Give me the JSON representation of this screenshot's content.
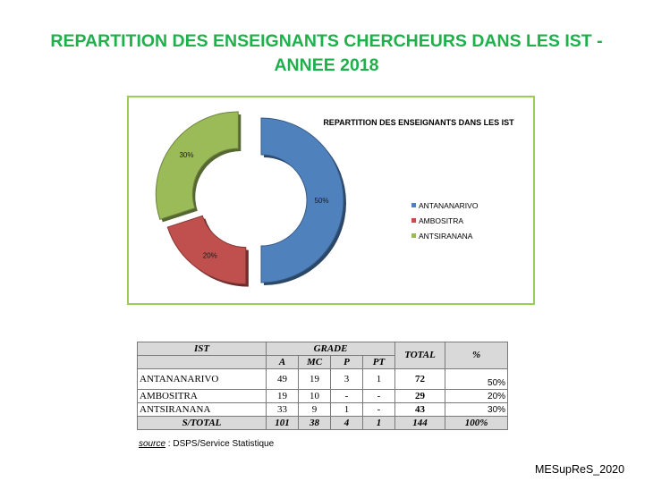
{
  "slide_title": "REPARTITION DES ENSEIGNANTS CHERCHEURS DANS LES IST - ANNEE 2018",
  "colors": {
    "title": "#1fb04b",
    "border": "#9acd56"
  },
  "chart_data": {
    "type": "pie",
    "title": "REPARTITION DES ENSEIGNANTS DANS LES IST",
    "categories": [
      "ANTANANARIVO",
      "AMBOSITRA",
      "ANTSIRANANA"
    ],
    "values": [
      50,
      20,
      30
    ],
    "labels": [
      "50%",
      "20%",
      "30%"
    ],
    "colors": [
      "#4f81bd",
      "#c0504d",
      "#9bbb59"
    ],
    "style": "exploded-doughnut",
    "legend_position": "right"
  },
  "table": {
    "header": {
      "ist": "IST",
      "grade": "GRADE",
      "total": "TOTAL",
      "pct": "%"
    },
    "grades": [
      "A",
      "MC",
      "P",
      "PT"
    ],
    "rows": [
      {
        "name": "ANTANANARIVO",
        "a": "49",
        "mc": "19",
        "p": "3",
        "pt": "1",
        "total": "72",
        "pct": "50%"
      },
      {
        "name": "AMBOSITRA",
        "a": "19",
        "mc": "10",
        "p": "-",
        "pt": "-",
        "total": "29",
        "pct": "20%"
      },
      {
        "name": "ANTSIRANANA",
        "a": "33",
        "mc": "9",
        "p": "1",
        "pt": "-",
        "total": "43",
        "pct": "30%"
      }
    ],
    "footer": {
      "label": "S/TOTAL",
      "a": "101",
      "mc": "38",
      "p": "4",
      "pt": "1",
      "total": "144",
      "pct": "100%"
    }
  },
  "source": {
    "label": "source",
    "text": " : DSPS/Service Statistique"
  },
  "credit": "MESupReS_2020"
}
